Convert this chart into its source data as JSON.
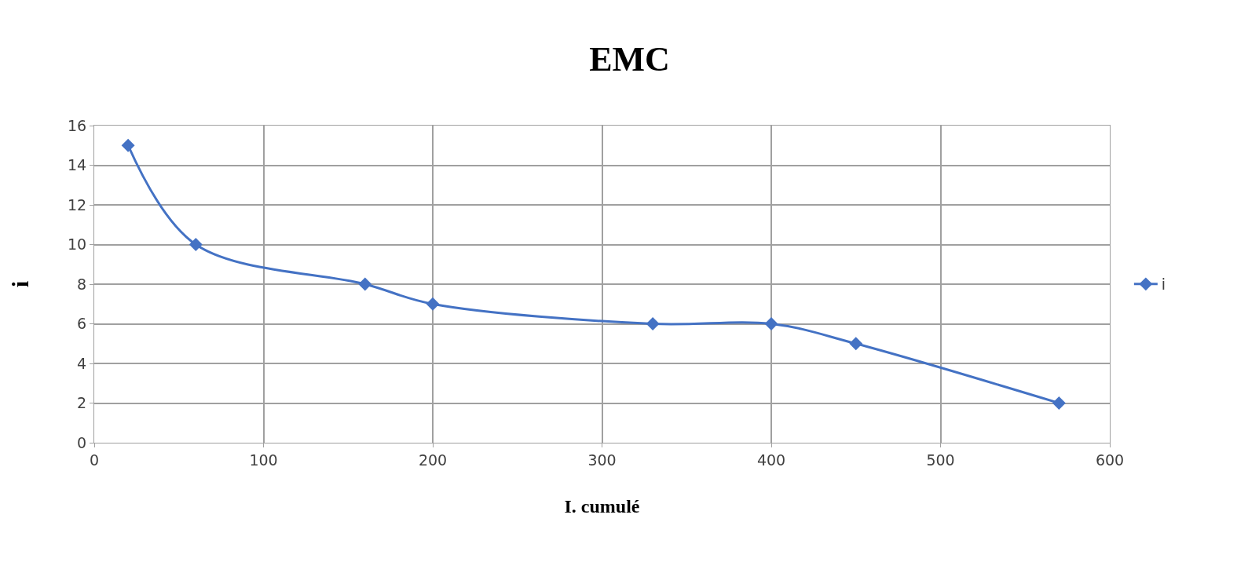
{
  "chart_data": {
    "type": "line",
    "title": "EMC",
    "xlabel": "I. cumulé",
    "ylabel": "i",
    "x": [
      20,
      60,
      160,
      200,
      330,
      400,
      450,
      570
    ],
    "series": [
      {
        "name": "i",
        "color": "#4472c4",
        "values": [
          15,
          10,
          8,
          7,
          6,
          6,
          5,
          2
        ]
      }
    ],
    "xlim": [
      0,
      600
    ],
    "xticks": [
      0,
      100,
      200,
      300,
      400,
      500,
      600
    ],
    "ylim": [
      0,
      16
    ],
    "yticks": [
      0,
      2,
      4,
      6,
      8,
      10,
      12,
      14,
      16
    ],
    "grid": true,
    "legend": "right",
    "marker": "diamond",
    "line_style": "solid"
  }
}
